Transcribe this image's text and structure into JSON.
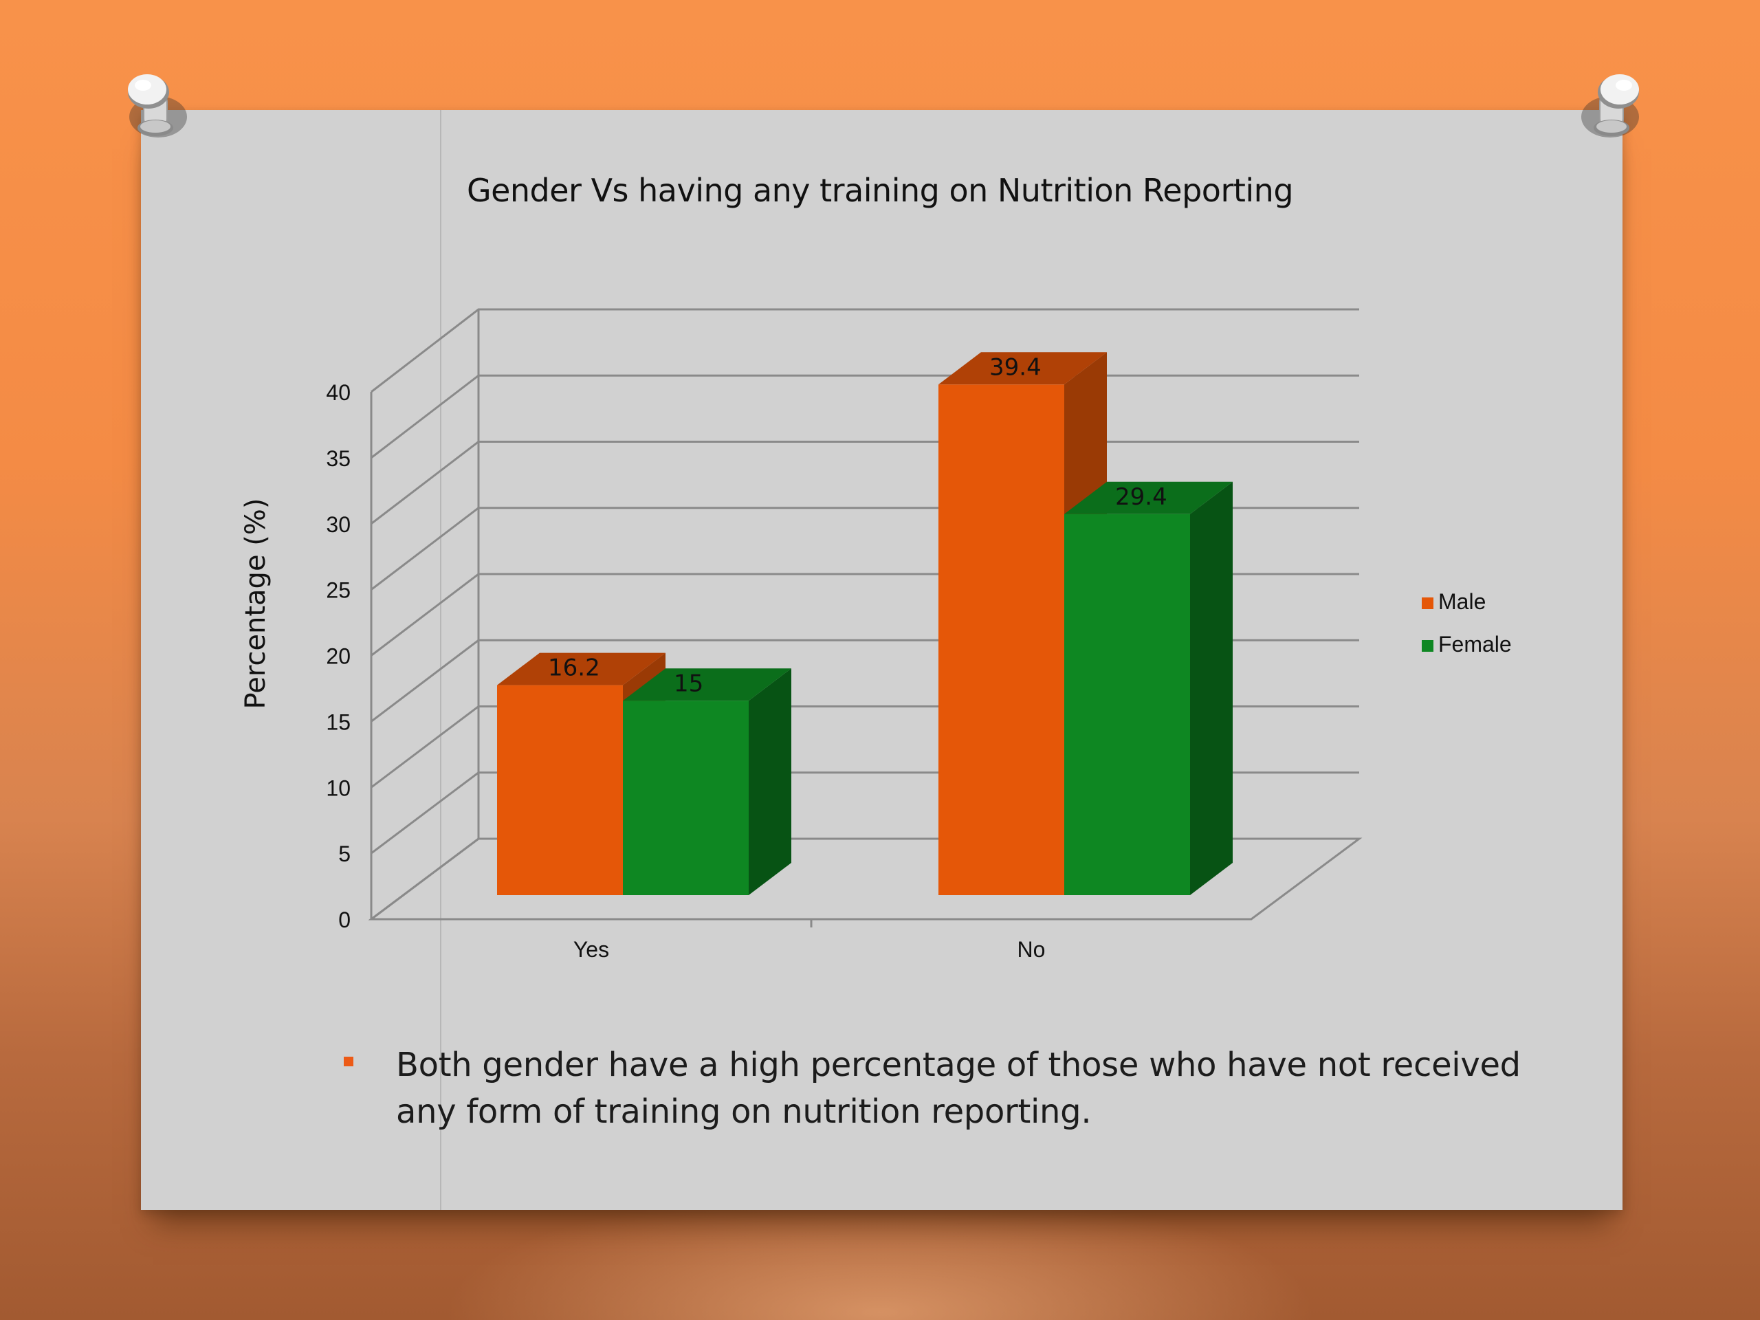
{
  "slide": {
    "title": "Gender Vs having any training on Nutrition Reporting",
    "bullet": "Both gender have a high percentage of those who have not received any form of training on nutrition reporting."
  },
  "chart_data": {
    "type": "bar",
    "title": "Gender Vs having any training on Nutrition Reporting",
    "xlabel": "",
    "ylabel": "Percentage (%)",
    "categories": [
      "Yes",
      "No"
    ],
    "series": [
      {
        "name": "Male",
        "values": [
          16.2,
          39.4
        ],
        "color": "#e55708"
      },
      {
        "name": "Female",
        "values": [
          15,
          29.4
        ],
        "color": "#0e8722"
      }
    ],
    "data_labels": [
      [
        "16.2",
        "39.4"
      ],
      [
        "15",
        "29.4"
      ]
    ],
    "yticks": [
      0,
      5,
      10,
      15,
      20,
      25,
      30,
      35,
      40
    ],
    "ylim": [
      0,
      40
    ],
    "grid": true,
    "legend": "right",
    "style": "3d-clustered-column"
  },
  "colors": {
    "background": "#f48b45",
    "paper": "#d1d1d1",
    "bullet": "#ec5a16",
    "male_top": "#b04106",
    "male_side": "#9a3a05",
    "female_top": "#0b6e1b",
    "female_side": "#075314"
  }
}
